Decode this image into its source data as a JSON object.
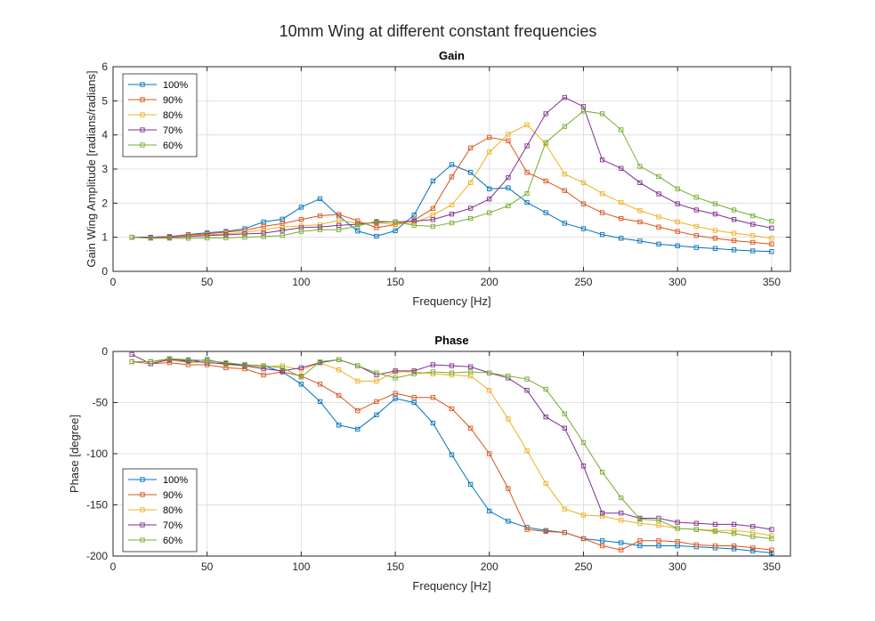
{
  "figure_title": "10mm Wing at different constant frequencies",
  "colors": {
    "100%": "#0072BD",
    "90%": "#D95319",
    "80%": "#EDB120",
    "70%": "#7E2F8E",
    "60%": "#77AC30"
  },
  "chart_data": [
    {
      "type": "line",
      "title": "Gain",
      "xlabel": "Frequency [Hz]",
      "ylabel": "Gain Wing Amplitude [radians/radians]",
      "xlim": [
        0,
        360
      ],
      "ylim": [
        0,
        6
      ],
      "xticks": [
        0,
        50,
        100,
        150,
        200,
        250,
        300,
        350
      ],
      "yticks": [
        0,
        1,
        2,
        3,
        4,
        5,
        6
      ],
      "grid": true,
      "legend_location": "top-left",
      "marker": "square",
      "x": [
        10,
        20,
        30,
        40,
        50,
        60,
        70,
        80,
        90,
        100,
        110,
        120,
        130,
        140,
        150,
        160,
        170,
        180,
        190,
        200,
        210,
        220,
        230,
        240,
        250,
        260,
        270,
        280,
        290,
        300,
        310,
        320,
        330,
        340,
        350
      ],
      "series": [
        {
          "name": "100%",
          "values": [
            1.0,
            1.0,
            1.02,
            1.08,
            1.13,
            1.17,
            1.25,
            1.45,
            1.53,
            1.88,
            2.13,
            1.62,
            1.18,
            1.03,
            1.19,
            1.65,
            2.65,
            3.13,
            2.9,
            2.42,
            2.45,
            2.02,
            1.72,
            1.41,
            1.25,
            1.08,
            0.97,
            0.89,
            0.8,
            0.75,
            0.7,
            0.67,
            0.63,
            0.6,
            0.58
          ]
        },
        {
          "name": "90%",
          "values": [
            1.0,
            1.0,
            1.02,
            1.07,
            1.1,
            1.15,
            1.2,
            1.32,
            1.4,
            1.52,
            1.63,
            1.67,
            1.48,
            1.28,
            1.37,
            1.5,
            1.84,
            2.77,
            3.62,
            3.93,
            3.83,
            2.9,
            2.65,
            2.37,
            1.98,
            1.72,
            1.55,
            1.45,
            1.3,
            1.17,
            1.05,
            0.97,
            0.9,
            0.85,
            0.8
          ]
        },
        {
          "name": "80%",
          "values": [
            1.0,
            1.0,
            1.0,
            1.04,
            1.07,
            1.1,
            1.14,
            1.22,
            1.3,
            1.33,
            1.37,
            1.5,
            1.41,
            1.42,
            1.38,
            1.42,
            1.65,
            1.95,
            2.6,
            3.5,
            4.02,
            4.3,
            3.73,
            2.85,
            2.6,
            2.28,
            2.02,
            1.78,
            1.6,
            1.45,
            1.32,
            1.2,
            1.12,
            1.05,
            0.97
          ]
        },
        {
          "name": "70%",
          "values": [
            1.0,
            1.0,
            1.0,
            1.02,
            1.05,
            1.07,
            1.1,
            1.12,
            1.2,
            1.28,
            1.3,
            1.35,
            1.38,
            1.44,
            1.45,
            1.47,
            1.52,
            1.68,
            1.85,
            2.12,
            2.75,
            3.68,
            4.62,
            5.1,
            4.83,
            3.27,
            3.02,
            2.6,
            2.27,
            1.98,
            1.8,
            1.68,
            1.52,
            1.38,
            1.27
          ]
        },
        {
          "name": "60%",
          "values": [
            1.0,
            0.97,
            0.97,
            0.97,
            0.98,
            0.98,
            1.0,
            1.02,
            1.05,
            1.17,
            1.22,
            1.22,
            1.33,
            1.47,
            1.45,
            1.35,
            1.32,
            1.42,
            1.55,
            1.72,
            1.92,
            2.28,
            3.78,
            4.25,
            4.7,
            4.62,
            4.15,
            3.08,
            2.78,
            2.42,
            2.17,
            1.98,
            1.8,
            1.63,
            1.47
          ]
        }
      ]
    },
    {
      "type": "line",
      "title": "Phase",
      "xlabel": "Frequency [Hz]",
      "ylabel": "Phase [degree]",
      "xlim": [
        0,
        360
      ],
      "ylim": [
        -200,
        0
      ],
      "xticks": [
        0,
        50,
        100,
        150,
        200,
        250,
        300,
        350
      ],
      "yticks": [
        -200,
        -150,
        -100,
        -50,
        0
      ],
      "grid": true,
      "legend_location": "bottom-left",
      "marker": "square",
      "x": [
        10,
        20,
        30,
        40,
        50,
        60,
        70,
        80,
        90,
        100,
        110,
        120,
        130,
        140,
        150,
        160,
        170,
        180,
        190,
        200,
        210,
        220,
        230,
        240,
        250,
        260,
        270,
        280,
        290,
        300,
        310,
        320,
        330,
        340,
        350
      ],
      "series": [
        {
          "name": "100%",
          "values": [
            -10,
            -10,
            -8,
            -10,
            -8,
            -12,
            -13,
            -14,
            -20,
            -32,
            -49,
            -72,
            -76,
            -62,
            -46,
            -50,
            -70,
            -101,
            -130,
            -156,
            -166,
            -172,
            -175,
            -177,
            -183,
            -185,
            -187,
            -190,
            -190,
            -190,
            -191,
            -192,
            -193,
            -195,
            -197
          ]
        },
        {
          "name": "90%",
          "values": [
            -10,
            -12,
            -11,
            -13,
            -13,
            -16,
            -17,
            -23,
            -20,
            -24,
            -32,
            -43,
            -58,
            -49,
            -41,
            -45,
            -45,
            -56,
            -75,
            -100,
            -134,
            -174,
            -176,
            -177,
            -183,
            -190,
            -194,
            -185,
            -185,
            -186,
            -189,
            -190,
            -190,
            -192,
            -194
          ]
        },
        {
          "name": "80%",
          "values": [
            -10,
            -10,
            -8,
            -11,
            -10,
            -13,
            -14,
            -15,
            -14,
            -18,
            -11,
            -18,
            -29,
            -29,
            -20,
            -20,
            -22,
            -23,
            -24,
            -38,
            -66,
            -97,
            -129,
            -154,
            -160,
            -161,
            -165,
            -168,
            -170,
            -173,
            -174,
            -175,
            -175,
            -177,
            -180
          ]
        },
        {
          "name": "70%",
          "values": [
            -3,
            -12,
            -8,
            -9,
            -11,
            -12,
            -14,
            -17,
            -19,
            -16,
            -11,
            -8,
            -14,
            -23,
            -19,
            -19,
            -13,
            -14,
            -15,
            -21,
            -26,
            -38,
            -64,
            -75,
            -112,
            -158,
            -158,
            -163,
            -163,
            -167,
            -168,
            -169,
            -169,
            -171,
            -174
          ]
        },
        {
          "name": "60%",
          "values": [
            -10,
            -10,
            -7,
            -8,
            -9,
            -11,
            -13,
            -14,
            -16,
            -25,
            -10,
            -8,
            -14,
            -21,
            -26,
            -22,
            -20,
            -21,
            -20,
            -21,
            -24,
            -27,
            -37,
            -61,
            -89,
            -118,
            -143,
            -164,
            -165,
            -173,
            -174,
            -176,
            -178,
            -181,
            -183
          ]
        }
      ]
    }
  ]
}
